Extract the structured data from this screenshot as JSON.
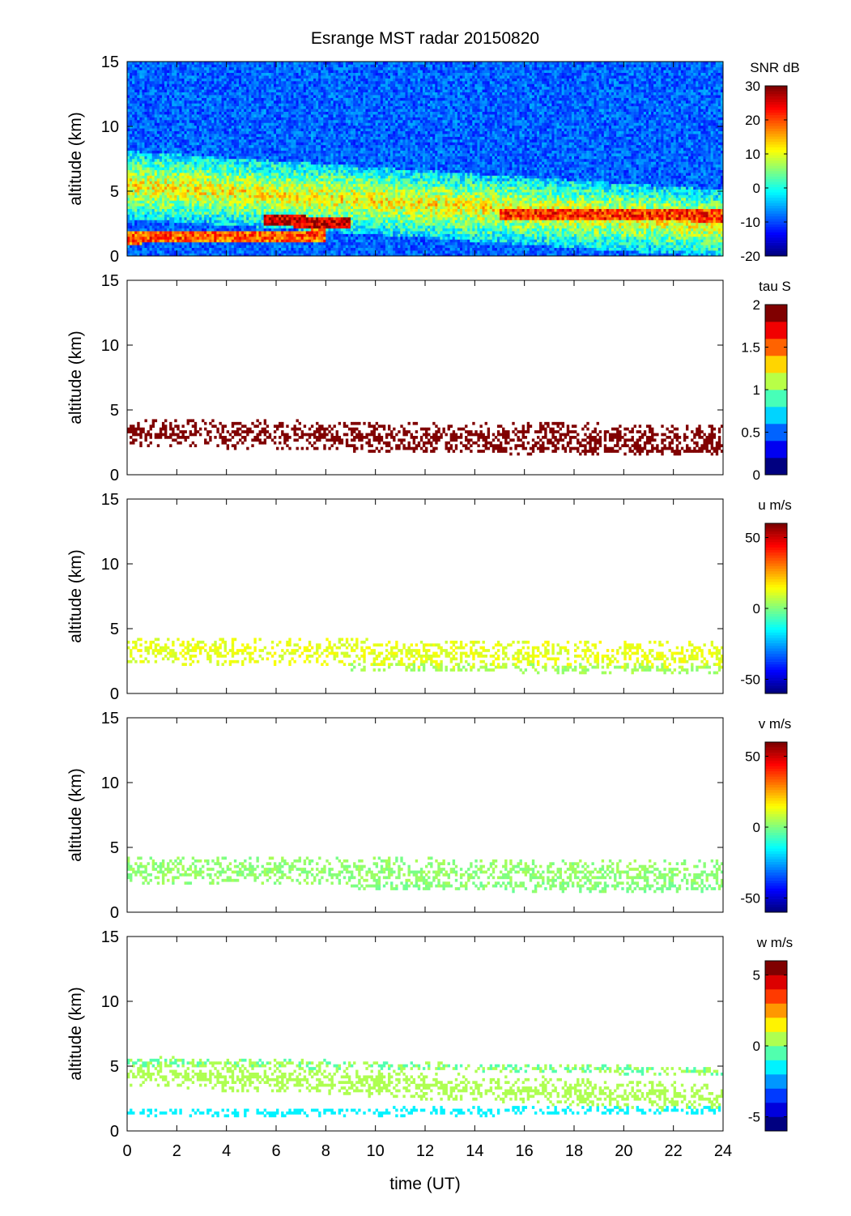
{
  "figure": {
    "title": "Esrange MST radar 20150820",
    "xlabel": "time (UT)",
    "ylabel": "altitude (km)",
    "xlim": [
      0,
      24
    ],
    "xticks": [
      0,
      2,
      4,
      6,
      8,
      10,
      12,
      14,
      16,
      18,
      20,
      22,
      24
    ],
    "ylim": [
      0,
      15
    ],
    "yticks": [
      0,
      5,
      10,
      15
    ]
  },
  "chart_data": [
    {
      "type": "heatmap",
      "title": "Esrange MST radar 20150820",
      "xlabel": "",
      "ylabel": "altitude (km)",
      "xlim": [
        0,
        24
      ],
      "ylim": [
        0,
        15
      ],
      "colorbar": {
        "label": "SNR dB",
        "range": [
          -20,
          30
        ],
        "ticks": [
          -20,
          -10,
          0,
          10,
          20,
          30
        ],
        "colormap": "jet",
        "levels": 64
      },
      "layers": [
        {
          "description": "strong echo layer",
          "start": [
            0,
            5.5
          ],
          "end": [
            24,
            2.5
          ],
          "value": 12
        },
        {
          "description": "peak echo band",
          "start": [
            5.5,
            2.8
          ],
          "end": [
            9,
            2.5
          ],
          "value": 27
        },
        {
          "description": "peak echo band",
          "start": [
            15,
            3.3
          ],
          "end": [
            24,
            3.1
          ],
          "value": 22
        },
        {
          "description": "low band",
          "start": [
            0,
            1.4
          ],
          "end": [
            8,
            1.6
          ],
          "value": 20
        }
      ]
    },
    {
      "type": "heatmap",
      "xlabel": "",
      "ylabel": "altitude (km)",
      "xlim": [
        0,
        24
      ],
      "ylim": [
        0,
        15
      ],
      "colorbar": {
        "label": "tau S",
        "range": [
          0,
          2
        ],
        "ticks": [
          0,
          0.5,
          1,
          1.5,
          2
        ],
        "colormap": "jet",
        "levels": 10
      },
      "layers": [
        {
          "description": "valid data layer",
          "start": [
            0,
            3.2
          ],
          "end": [
            24,
            2.8
          ],
          "value": 2.0
        },
        {
          "description": "lower band",
          "start": [
            9,
            2.0
          ],
          "end": [
            24,
            1.9
          ],
          "value": 2.0
        }
      ]
    },
    {
      "type": "heatmap",
      "xlabel": "",
      "ylabel": "altitude (km)",
      "xlim": [
        0,
        24
      ],
      "ylim": [
        0,
        15
      ],
      "colorbar": {
        "label": "u m/s",
        "range": [
          -60,
          60
        ],
        "ticks": [
          -50,
          0,
          50
        ],
        "colormap": "jet",
        "levels": 64
      },
      "layers": [
        {
          "description": "zonal wind layer",
          "start": [
            0,
            3.3
          ],
          "end": [
            24,
            2.9
          ],
          "value": 12
        },
        {
          "description": "lower band",
          "start": [
            9,
            2.0
          ],
          "end": [
            24,
            1.9
          ],
          "value": 4
        }
      ]
    },
    {
      "type": "heatmap",
      "xlabel": "",
      "ylabel": "altitude (km)",
      "xlim": [
        0,
        24
      ],
      "ylim": [
        0,
        15
      ],
      "colorbar": {
        "label": "v m/s",
        "range": [
          -60,
          60
        ],
        "ticks": [
          -50,
          0,
          50
        ],
        "colormap": "jet",
        "levels": 64
      },
      "layers": [
        {
          "description": "meridional wind layer",
          "start": [
            0,
            3.3
          ],
          "end": [
            24,
            2.9
          ],
          "value": 2
        },
        {
          "description": "lower band",
          "start": [
            9,
            2.0
          ],
          "end": [
            24,
            1.9
          ],
          "value": 0
        }
      ]
    },
    {
      "type": "heatmap",
      "xlabel": "time (UT)",
      "ylabel": "altitude (km)",
      "xlim": [
        0,
        24
      ],
      "ylim": [
        0,
        15
      ],
      "colorbar": {
        "label": "w m/s",
        "range": [
          -6,
          6
        ],
        "ticks": [
          -5,
          0,
          5
        ],
        "colormap": "jet",
        "levels": 12
      },
      "layers": [
        {
          "description": "vertical wind layer",
          "start": [
            0,
            4.5
          ],
          "end": [
            24,
            2.5
          ],
          "value": 0.5
        },
        {
          "description": "low band",
          "start": [
            0,
            1.4
          ],
          "end": [
            24,
            1.6
          ],
          "value": -1.5
        },
        {
          "description": "upper band",
          "start": [
            0,
            5.4
          ],
          "end": [
            24,
            4.6
          ],
          "value": 0
        }
      ]
    }
  ]
}
